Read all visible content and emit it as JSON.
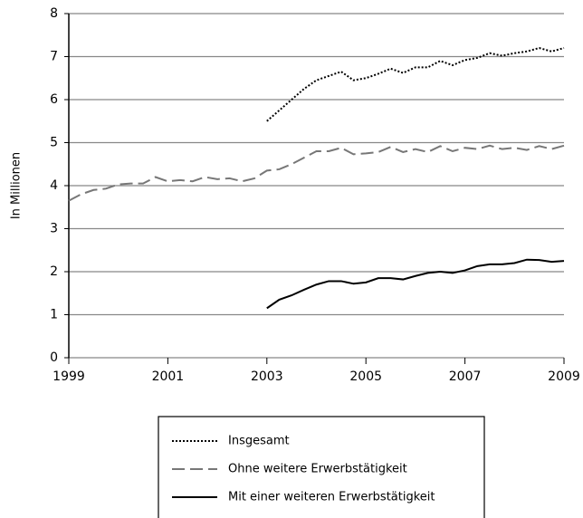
{
  "chart_data": {
    "type": "line",
    "ylabel": "In Millionen",
    "x": [
      1999,
      1999.25,
      1999.5,
      1999.75,
      2000,
      2000.25,
      2000.5,
      2000.75,
      2001,
      2001.25,
      2001.5,
      2001.75,
      2002,
      2002.25,
      2002.5,
      2002.75,
      2003,
      2003.25,
      2003.5,
      2003.75,
      2004,
      2004.25,
      2004.5,
      2004.75,
      2005,
      2005.25,
      2005.5,
      2005.75,
      2006,
      2006.25,
      2006.5,
      2006.75,
      2007,
      2007.25,
      2007.5,
      2007.75,
      2008,
      2008.25,
      2008.5,
      2008.75,
      2009
    ],
    "series": [
      {
        "name": "Insgesamt",
        "color": "#000000",
        "dash": "dotted",
        "values": [
          null,
          null,
          null,
          null,
          null,
          null,
          null,
          null,
          null,
          null,
          null,
          null,
          null,
          null,
          null,
          null,
          5.5,
          5.75,
          6.0,
          6.25,
          6.45,
          6.55,
          6.65,
          6.45,
          6.5,
          6.6,
          6.72,
          6.62,
          6.75,
          6.75,
          6.9,
          6.8,
          6.92,
          6.97,
          7.08,
          7.02,
          7.08,
          7.12,
          7.2,
          7.12,
          7.2
        ]
      },
      {
        "name": "Ohne weitere Erwerbstätigkeit",
        "color": "#777777",
        "dash": "dashed",
        "values": [
          3.65,
          3.8,
          3.9,
          3.93,
          4.03,
          4.05,
          4.05,
          4.2,
          4.1,
          4.13,
          4.1,
          4.2,
          4.15,
          4.17,
          4.1,
          4.17,
          4.35,
          4.38,
          4.5,
          4.65,
          4.8,
          4.8,
          4.88,
          4.73,
          4.75,
          4.78,
          4.9,
          4.78,
          4.85,
          4.78,
          4.92,
          4.8,
          4.88,
          4.85,
          4.93,
          4.85,
          4.88,
          4.83,
          4.92,
          4.85,
          4.93
        ]
      },
      {
        "name": "Mit einer weiteren Erwerbstätigkeit",
        "color": "#000000",
        "dash": "solid",
        "values": [
          null,
          null,
          null,
          null,
          null,
          null,
          null,
          null,
          null,
          null,
          null,
          null,
          null,
          null,
          null,
          null,
          1.15,
          1.35,
          1.45,
          1.58,
          1.7,
          1.78,
          1.78,
          1.72,
          1.75,
          1.85,
          1.85,
          1.82,
          1.9,
          1.97,
          2.0,
          1.97,
          2.03,
          2.13,
          2.17,
          2.17,
          2.2,
          2.28,
          2.27,
          2.23,
          2.25
        ]
      }
    ],
    "xlim": [
      1999,
      2009
    ],
    "xticks": [
      1999,
      2001,
      2003,
      2005,
      2007,
      2009
    ],
    "ylim": [
      0,
      8
    ],
    "yticks": [
      0,
      1,
      2,
      3,
      4,
      5,
      6,
      7,
      8
    ],
    "grid": true,
    "legend": "bottom"
  }
}
